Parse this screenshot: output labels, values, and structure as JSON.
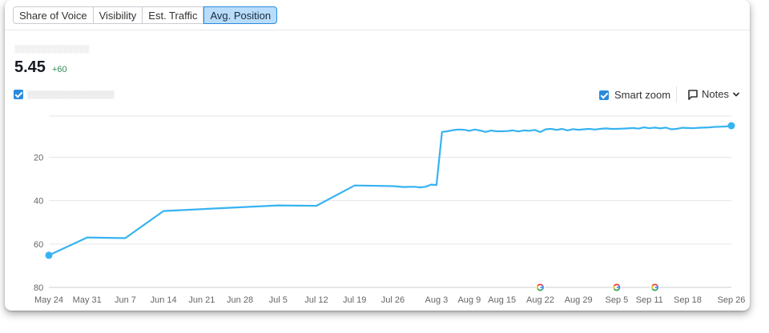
{
  "tabs": [
    {
      "label": "Share of Voice",
      "active": false
    },
    {
      "label": "Visibility",
      "active": false
    },
    {
      "label": "Est. Traffic",
      "active": false
    },
    {
      "label": "Avg. Position",
      "active": true
    }
  ],
  "summary": {
    "domain_label": "░░░░░░░░░░░░░░",
    "value": "5.45",
    "delta": "+60"
  },
  "series_toggle": {
    "checked": true,
    "label": "░░░░░░░░░░░░░░░░░"
  },
  "controls": {
    "smart_zoom_label": "Smart zoom",
    "smart_zoom_checked": true,
    "notes_label": "Notes"
  },
  "colors": {
    "line": "#37b3f1",
    "grid": "#e4e6ea",
    "axis": "#c9cdd2",
    "accent": "#2a8bde"
  },
  "icons": [
    "checkbox-checked-icon",
    "notes-icon",
    "chevron-down-icon",
    "google-update-icon"
  ],
  "chart_data": {
    "type": "line",
    "x_type": "date",
    "x_ticks": [
      "May 24",
      "May 31",
      "Jun 7",
      "Jun 14",
      "Jun 21",
      "Jun 28",
      "Jul 5",
      "Jul 12",
      "Jul 19",
      "Jul 26",
      "Aug 3",
      "Aug 9",
      "Aug 15",
      "Aug 22",
      "Aug 29",
      "Sep 5",
      "Sep 11",
      "Sep 18",
      "Sep 26"
    ],
    "y_ticks": [
      20,
      40,
      60,
      80
    ],
    "y_reversed": true,
    "ylim": [
      1,
      80
    ],
    "grid": true,
    "google_update_markers": [
      "Aug 22",
      "Sep 5",
      "Sep 12"
    ],
    "series": [
      {
        "points": [
          [
            "May 24",
            65.2
          ],
          [
            "May 31",
            57
          ],
          [
            "Jun 7",
            57.3
          ],
          [
            "Jun 14",
            44.8
          ],
          [
            "Jul 5",
            42.2
          ],
          [
            "Jul 12",
            42.4
          ],
          [
            "Jul 19",
            33
          ],
          [
            "Jul 26",
            33.3
          ],
          [
            "Jul 28",
            33.7
          ],
          [
            "Jul 30",
            33.6
          ],
          [
            "Jul 31",
            33.9
          ],
          [
            "Aug 1",
            33.6
          ],
          [
            "Aug 2",
            32.6
          ],
          [
            "Aug 3",
            32.8
          ],
          [
            "Aug 4",
            8.3
          ],
          [
            "Aug 5",
            8
          ],
          [
            "Aug 6",
            7.5
          ],
          [
            "Aug 7",
            7.2
          ],
          [
            "Aug 8",
            7.3
          ],
          [
            "Aug 9",
            7.8
          ],
          [
            "Aug 10",
            7.2
          ],
          [
            "Aug 11",
            7.7
          ],
          [
            "Aug 12",
            8.3
          ],
          [
            "Aug 13",
            7.7
          ],
          [
            "Aug 14",
            8
          ],
          [
            "Aug 15",
            8
          ],
          [
            "Aug 16",
            7.9
          ],
          [
            "Aug 17",
            7.6
          ],
          [
            "Aug 18",
            8.1
          ],
          [
            "Aug 19",
            7.6
          ],
          [
            "Aug 20",
            7.8
          ],
          [
            "Aug 21",
            7.4
          ],
          [
            "Aug 22",
            8.4
          ],
          [
            "Aug 23",
            7.1
          ],
          [
            "Aug 24",
            6.9
          ],
          [
            "Aug 25",
            7.4
          ],
          [
            "Aug 26",
            6.9
          ],
          [
            "Aug 27",
            7.6
          ],
          [
            "Aug 28",
            7
          ],
          [
            "Aug 29",
            7.3
          ],
          [
            "Aug 30",
            7.1
          ],
          [
            "Aug 31",
            6.9
          ],
          [
            "Sep 1",
            7.2
          ],
          [
            "Sep 2",
            6.9
          ],
          [
            "Sep 3",
            6.7
          ],
          [
            "Sep 4",
            6.9
          ],
          [
            "Sep 5",
            6.9
          ],
          [
            "Sep 6",
            6.8
          ],
          [
            "Sep 7",
            6.7
          ],
          [
            "Sep 8",
            6.5
          ],
          [
            "Sep 9",
            6.8
          ],
          [
            "Sep 10",
            6.2
          ],
          [
            "Sep 11",
            6.6
          ],
          [
            "Sep 12",
            6.3
          ],
          [
            "Sep 13",
            6.7
          ],
          [
            "Sep 14",
            6.3
          ],
          [
            "Sep 15",
            7.1
          ],
          [
            "Sep 16",
            6.9
          ],
          [
            "Sep 17",
            6.4
          ],
          [
            "Sep 18",
            6.5
          ],
          [
            "Sep 19",
            6.6
          ],
          [
            "Sep 20",
            6.4
          ],
          [
            "Sep 21",
            6.3
          ],
          [
            "Sep 22",
            6.2
          ],
          [
            "Sep 23",
            6
          ],
          [
            "Sep 24",
            5.9
          ],
          [
            "Sep 25",
            5.8
          ],
          [
            "Sep 26",
            5.45
          ]
        ]
      }
    ]
  }
}
